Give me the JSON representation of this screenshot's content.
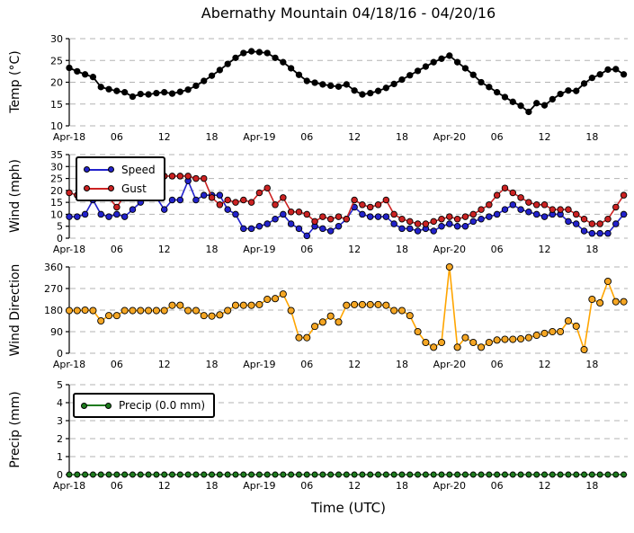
{
  "figure": {
    "title": "Abernathy Mountain 04/18/16 - 04/20/16",
    "xlabel": "Time (UTC)",
    "x_tick_labels": [
      "Apr-18",
      "06",
      "12",
      "18",
      "Apr-19",
      "06",
      "12",
      "18",
      "Apr-20",
      "06",
      "12",
      "18"
    ],
    "x_tick_hours": [
      0,
      6,
      12,
      18,
      24,
      30,
      36,
      42,
      48,
      54,
      60,
      66
    ],
    "background_color": "#ffffff",
    "gridline_color": "#b3b3b3"
  },
  "chart_data": [
    {
      "type": "line",
      "name": "temperature",
      "ylabel": "Temp (°C)",
      "ylim": [
        10,
        30
      ],
      "yticks": [
        10,
        15,
        20,
        25,
        30
      ],
      "grid": true,
      "x_start_hour": 0,
      "x_step_hours": 1,
      "series": [
        {
          "name": "Temp",
          "color": "#000000",
          "values": [
            23.3,
            22.5,
            21.8,
            21.2,
            18.9,
            18.4,
            18.0,
            17.7,
            16.7,
            17.3,
            17.2,
            17.5,
            17.7,
            17.4,
            17.8,
            18.3,
            19.2,
            20.3,
            21.5,
            22.8,
            24.2,
            25.6,
            26.7,
            27.1,
            26.9,
            26.7,
            25.6,
            24.6,
            23.2,
            21.7,
            20.3,
            19.9,
            19.5,
            19.2,
            19.0,
            19.5,
            18.1,
            17.2,
            17.5,
            18.0,
            18.7,
            19.6,
            20.6,
            21.6,
            22.6,
            23.6,
            24.6,
            25.4,
            26.1,
            24.6,
            23.2,
            21.7,
            20.0,
            18.9,
            17.7,
            16.6,
            15.5,
            14.6,
            13.2,
            15.2,
            14.7,
            16.1,
            17.3,
            18.1,
            18.0,
            19.7,
            21.0,
            21.8,
            22.9,
            23.0,
            21.8
          ]
        }
      ]
    },
    {
      "type": "line",
      "name": "wind",
      "ylabel": "Wind (mph)",
      "ylim": [
        0,
        35
      ],
      "yticks": [
        0,
        5,
        10,
        15,
        20,
        25,
        30,
        35
      ],
      "grid": true,
      "legend_position": "upper-left",
      "x_start_hour": 0,
      "x_step_hours": 1,
      "series": [
        {
          "name": "Speed",
          "color": "#2222cc",
          "values": [
            9,
            9,
            10,
            16,
            10,
            9,
            10,
            9,
            12,
            15,
            17,
            17,
            12,
            16,
            16,
            24,
            16,
            18,
            18,
            18,
            12,
            10,
            4,
            4,
            5,
            6,
            8,
            10,
            6,
            4,
            1,
            5,
            4,
            3,
            5,
            8,
            13,
            10,
            9,
            9,
            9,
            6,
            4,
            4,
            3,
            4,
            3,
            5,
            6,
            5,
            5,
            7,
            8,
            9,
            10,
            12,
            14,
            12,
            11,
            10,
            9,
            10,
            10,
            7,
            6,
            3,
            2,
            2,
            2,
            6,
            10
          ]
        },
        {
          "name": "Gust",
          "color": "#cc2222",
          "values": [
            19,
            18,
            21,
            24,
            20,
            17,
            13,
            18,
            24,
            28,
            31,
            30,
            26,
            26,
            26,
            26,
            25,
            25,
            17,
            14,
            16,
            15,
            16,
            15,
            19,
            21,
            14,
            17,
            11,
            11,
            10,
            7,
            9,
            8,
            9,
            8,
            16,
            14,
            13,
            14,
            16,
            10,
            8,
            7,
            6,
            6,
            7,
            8,
            9,
            8,
            9,
            10,
            12,
            14,
            18,
            21,
            19,
            17,
            15,
            14,
            14,
            12,
            12,
            12,
            10,
            8,
            6,
            6,
            8,
            13,
            18
          ]
        }
      ]
    },
    {
      "type": "line",
      "name": "wind-direction",
      "ylabel": "Wind Direction",
      "ylim": [
        0,
        360
      ],
      "yticks": [
        0,
        90,
        180,
        270,
        360
      ],
      "grid": true,
      "x_start_hour": 0,
      "x_step_hours": 1,
      "series": [
        {
          "name": "Wind Direction",
          "color": "#ffa500",
          "marker_color": "#f5a623",
          "values": [
            178,
            178,
            180,
            178,
            135,
            157,
            157,
            178,
            178,
            178,
            178,
            178,
            178,
            200,
            200,
            178,
            178,
            157,
            155,
            160,
            178,
            200,
            200,
            200,
            203,
            225,
            228,
            247,
            178,
            65,
            65,
            112,
            130,
            155,
            130,
            200,
            203,
            203,
            203,
            203,
            200,
            178,
            178,
            157,
            90,
            45,
            25,
            45,
            360,
            25,
            65,
            45,
            25,
            45,
            55,
            58,
            58,
            60,
            65,
            75,
            83,
            90,
            90,
            135,
            113,
            15,
            225,
            210,
            300,
            215,
            215
          ]
        }
      ]
    },
    {
      "type": "line",
      "name": "precipitation",
      "ylabel": "Precip (mm)",
      "ylim": [
        0,
        5
      ],
      "yticks": [
        0,
        1,
        2,
        3,
        4,
        5
      ],
      "grid": true,
      "legend_position": "upper-left",
      "x_start_hour": 0,
      "x_step_hours": 1,
      "series": [
        {
          "name": "Precip",
          "legend_label": "Precip (0.0 mm)",
          "color": "#1e7b1e",
          "values": [
            0,
            0,
            0,
            0,
            0,
            0,
            0,
            0,
            0,
            0,
            0,
            0,
            0,
            0,
            0,
            0,
            0,
            0,
            0,
            0,
            0,
            0,
            0,
            0,
            0,
            0,
            0,
            0,
            0,
            0,
            0,
            0,
            0,
            0,
            0,
            0,
            0,
            0,
            0,
            0,
            0,
            0,
            0,
            0,
            0,
            0,
            0,
            0,
            0,
            0,
            0,
            0,
            0,
            0,
            0,
            0,
            0,
            0,
            0,
            0,
            0,
            0,
            0,
            0,
            0,
            0,
            0,
            0,
            0,
            0,
            0
          ]
        }
      ]
    }
  ]
}
